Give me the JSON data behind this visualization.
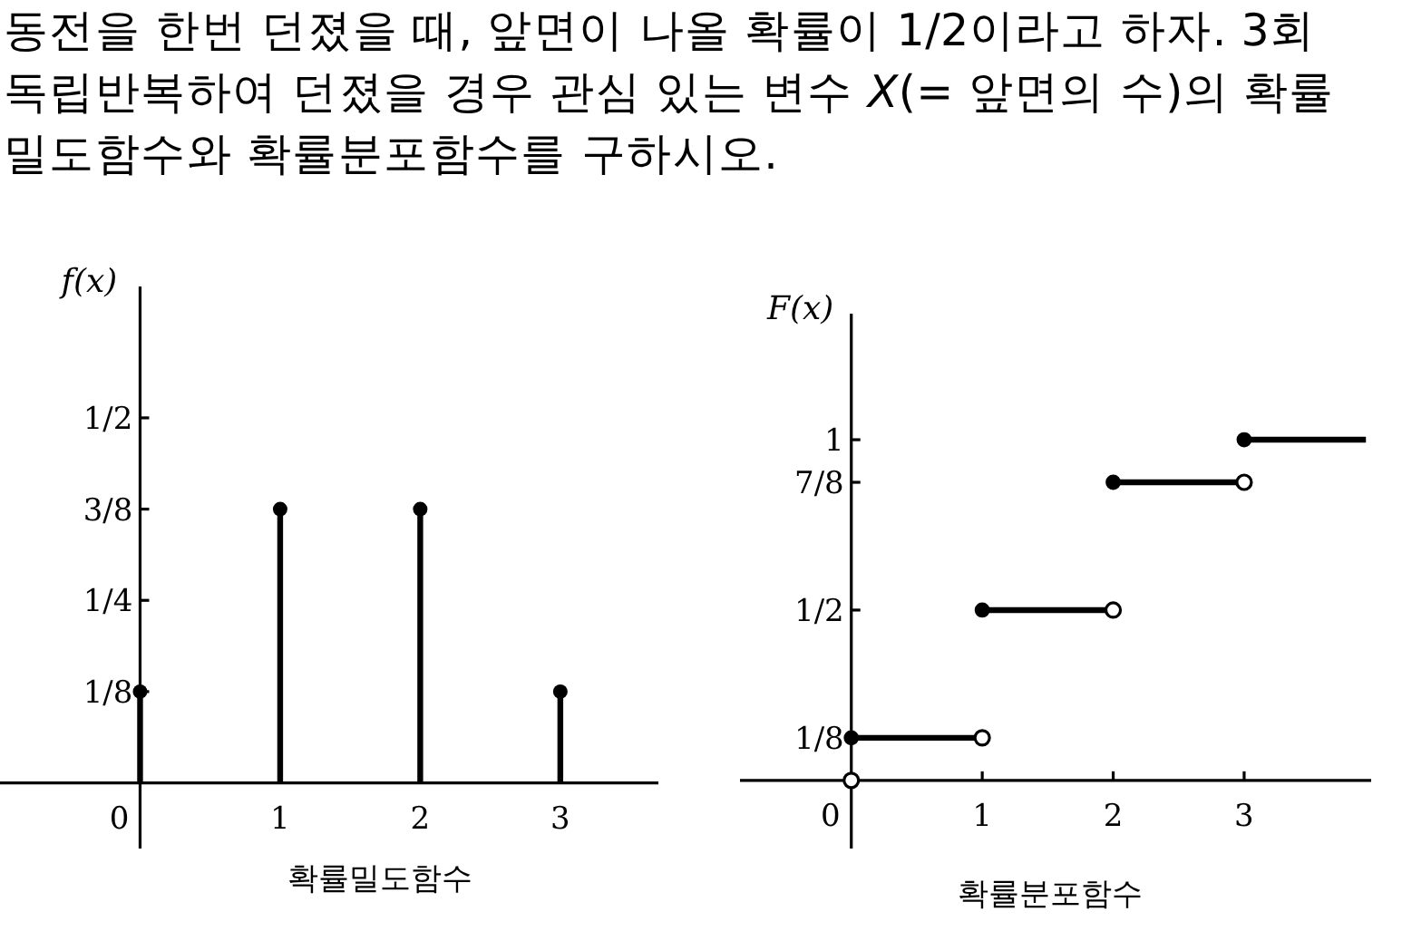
{
  "chart_data": [
    {
      "type": "lollipop",
      "title": "동전을 한번 던졌을 때, 앞면이 나올 확률이 1/2이라고 하자. 3회 독립반복하여 던졌을 경우 관심 있는 변수 *X*(= 앞면의 수)의 확률밀도함수와 확률분포함수를 구하시오.",
      "xlabel": "확률밀도함수",
      "ylabel": "f(x)",
      "x": [
        0,
        1,
        2,
        3
      ],
      "values": [
        0.125,
        0.375,
        0.375,
        0.125
      ],
      "color": "#000000",
      "marker": "circle",
      "xlim": [
        -1,
        3.7
      ],
      "ylim": [
        -0.09,
        0.68
      ],
      "xticks": [
        0,
        1,
        2,
        3
      ],
      "yticks": [
        {
          "value": 0.125,
          "label": "1/8"
        },
        {
          "value": 0.25,
          "label": "1/4"
        },
        {
          "value": 0.375,
          "label": "3/8"
        },
        {
          "value": 0.5,
          "label": "1/2"
        }
      ]
    },
    {
      "type": "step",
      "xlabel": "확률분포함수",
      "ylabel": "F(x)",
      "marker": "circle",
      "xlim": [
        -0.85,
        3.97
      ],
      "ylim": [
        -0.2,
        1.37
      ],
      "xticks": [
        0,
        1,
        2,
        3
      ],
      "yticks": [
        {
          "value": 0.125,
          "label": "1/8"
        },
        {
          "value": 0.5,
          "label": "1/2"
        },
        {
          "value": 0.875,
          "label": "7/8"
        },
        1
      ],
      "series": [
        {
          "color": "#000000",
          "x": [
            0,
            1,
            2,
            3,
            3.93
          ],
          "values": [
            0.125,
            0.5,
            0.875,
            1,
            1
          ]
        },
        {
          "type": "scatter",
          "color": "#ffffff",
          "x": [
            0,
            1,
            2,
            3
          ],
          "values": [
            0,
            0.125,
            0.5,
            0.875
          ]
        }
      ]
    }
  ]
}
